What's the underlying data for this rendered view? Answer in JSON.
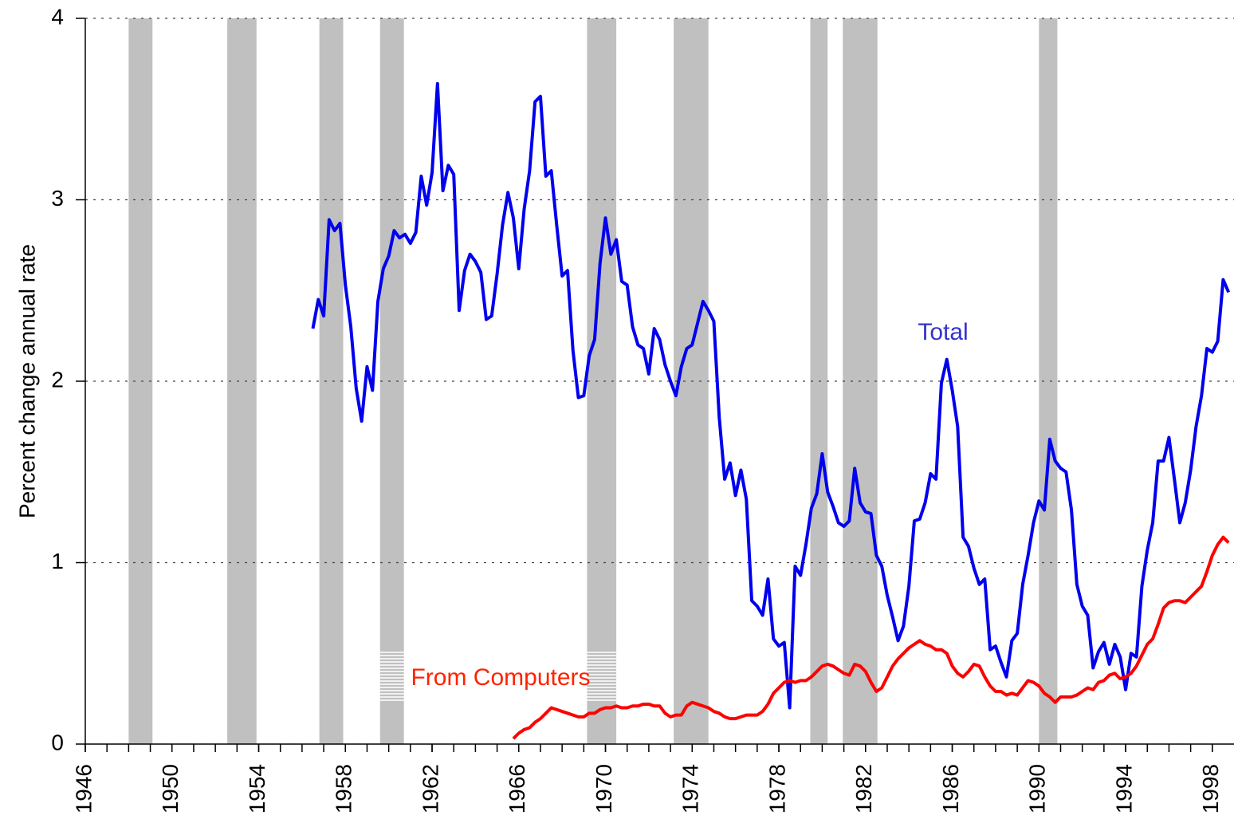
{
  "chart_data": {
    "type": "line",
    "ylabel": "Percent change annual rate",
    "xlim": [
      1946,
      1999
    ],
    "ylim": [
      0,
      4
    ],
    "xticks": [
      1946,
      1950,
      1954,
      1958,
      1962,
      1966,
      1970,
      1974,
      1978,
      1982,
      1986,
      1990,
      1994,
      1998
    ],
    "x_minor_ticks": [
      1946,
      1947,
      1948,
      1949,
      1950,
      1951,
      1952,
      1953,
      1954,
      1955,
      1956,
      1957,
      1958,
      1959,
      1960,
      1961,
      1962,
      1963,
      1964,
      1965,
      1966,
      1967,
      1968,
      1969,
      1970,
      1971,
      1972,
      1973,
      1974,
      1975,
      1976,
      1977,
      1978,
      1979,
      1980,
      1981,
      1982,
      1983,
      1984,
      1985,
      1986,
      1987,
      1988,
      1989,
      1990,
      1991,
      1992,
      1993,
      1994,
      1995,
      1996,
      1997,
      1998
    ],
    "yticks": [
      0,
      1,
      2,
      3,
      4
    ],
    "grid": true,
    "recession_color": "#c0c0c0",
    "recessions": [
      [
        1948.0,
        1949.1
      ],
      [
        1952.55,
        1953.9
      ],
      [
        1956.8,
        1957.9
      ],
      [
        1959.6,
        1960.7
      ],
      [
        1969.15,
        1970.5
      ],
      [
        1973.15,
        1974.75
      ],
      [
        1979.45,
        1980.25
      ],
      [
        1980.95,
        1982.55
      ],
      [
        1990.0,
        1990.85
      ]
    ],
    "annotations": [
      {
        "text": "Total",
        "color": "#3333cc"
      },
      {
        "text": "From Computers",
        "color": "#ff2200"
      }
    ],
    "series": [
      {
        "name": "Total",
        "color": "#0000ee",
        "x": [
          1956.5,
          1956.75,
          1957,
          1957.25,
          1957.5,
          1957.75,
          1958,
          1958.25,
          1958.5,
          1958.75,
          1959,
          1959.25,
          1959.5,
          1959.75,
          1960,
          1960.25,
          1960.5,
          1960.75,
          1961,
          1961.25,
          1961.5,
          1961.75,
          1962,
          1962.25,
          1962.5,
          1962.75,
          1963,
          1963.25,
          1963.5,
          1963.75,
          1964,
          1964.25,
          1964.5,
          1964.75,
          1965,
          1965.25,
          1965.5,
          1965.75,
          1966,
          1966.25,
          1966.5,
          1966.75,
          1967,
          1967.25,
          1967.5,
          1967.75,
          1968,
          1968.25,
          1968.5,
          1968.75,
          1969,
          1969.25,
          1969.5,
          1969.75,
          1970,
          1970.25,
          1970.5,
          1970.75,
          1971,
          1971.25,
          1971.5,
          1971.75,
          1972,
          1972.25,
          1972.5,
          1972.75,
          1973,
          1973.25,
          1973.5,
          1973.75,
          1974,
          1974.25,
          1974.5,
          1974.75,
          1975,
          1975.25,
          1975.5,
          1975.75,
          1976,
          1976.25,
          1976.5,
          1976.75,
          1977,
          1977.25,
          1977.5,
          1977.75,
          1978,
          1978.25,
          1978.5,
          1978.75,
          1979,
          1979.25,
          1979.5,
          1979.75,
          1980,
          1980.25,
          1980.5,
          1980.75,
          1981,
          1981.25,
          1981.5,
          1981.75,
          1982,
          1982.25,
          1982.5,
          1982.75,
          1983,
          1983.25,
          1983.5,
          1983.75,
          1984,
          1984.25,
          1984.5,
          1984.75,
          1985,
          1985.25,
          1985.5,
          1985.75,
          1986,
          1986.25,
          1986.5,
          1986.75,
          1987,
          1987.25,
          1987.5,
          1987.75,
          1988,
          1988.25,
          1988.5,
          1988.75,
          1989,
          1989.25,
          1989.5,
          1989.75,
          1990,
          1990.25,
          1990.5,
          1990.75,
          1991,
          1991.25,
          1991.5,
          1991.75,
          1992,
          1992.25,
          1992.5,
          1992.75,
          1993,
          1993.25,
          1993.5,
          1993.75,
          1994,
          1994.25,
          1994.5,
          1994.75,
          1995,
          1995.25,
          1995.5,
          1995.75,
          1996,
          1996.25,
          1996.5,
          1996.75,
          1997,
          1997.25,
          1997.5,
          1997.75,
          1998,
          1998.25,
          1998.5,
          1998.75
        ],
        "values": [
          2.29,
          2.45,
          2.36,
          2.89,
          2.83,
          2.87,
          2.53,
          2.3,
          1.96,
          1.78,
          2.08,
          1.95,
          2.44,
          2.62,
          2.69,
          2.83,
          2.79,
          2.81,
          2.76,
          2.82,
          3.13,
          2.97,
          3.15,
          3.64,
          3.05,
          3.19,
          3.14,
          2.39,
          2.61,
          2.7,
          2.66,
          2.6,
          2.34,
          2.36,
          2.59,
          2.86,
          3.04,
          2.9,
          2.62,
          2.95,
          3.16,
          3.54,
          3.57,
          3.13,
          3.16,
          2.86,
          2.58,
          2.61,
          2.17,
          1.91,
          1.92,
          2.14,
          2.23,
          2.65,
          2.9,
          2.7,
          2.78,
          2.55,
          2.53,
          2.3,
          2.2,
          2.18,
          2.04,
          2.29,
          2.23,
          2.09,
          2.0,
          1.92,
          2.08,
          2.18,
          2.2,
          2.32,
          2.44,
          2.39,
          2.33,
          1.8,
          1.46,
          1.55,
          1.37,
          1.51,
          1.35,
          0.79,
          0.76,
          0.71,
          0.91,
          0.58,
          0.54,
          0.56,
          0.2,
          0.98,
          0.93,
          1.1,
          1.3,
          1.38,
          1.6,
          1.39,
          1.31,
          1.22,
          1.2,
          1.23,
          1.52,
          1.33,
          1.28,
          1.27,
          1.04,
          0.98,
          0.82,
          0.7,
          0.57,
          0.65,
          0.87,
          1.23,
          1.24,
          1.33,
          1.49,
          1.46,
          1.99,
          2.12,
          1.95,
          1.75,
          1.14,
          1.09,
          0.97,
          0.88,
          0.91,
          0.52,
          0.54,
          0.45,
          0.37,
          0.57,
          0.61,
          0.88,
          1.04,
          1.22,
          1.34,
          1.29,
          1.68,
          1.56,
          1.52,
          1.5,
          1.29,
          0.88,
          0.76,
          0.71,
          0.42,
          0.51,
          0.56,
          0.44,
          0.55,
          0.48,
          0.3,
          0.5,
          0.48,
          0.87,
          1.07,
          1.22,
          1.56,
          1.56,
          1.69,
          1.46,
          1.22,
          1.33,
          1.51,
          1.75,
          1.92,
          2.18,
          2.16,
          2.22,
          2.56,
          2.49
        ]
      },
      {
        "name": "From Computers",
        "color": "#ff0000",
        "x": [
          1965.75,
          1966,
          1966.25,
          1966.5,
          1966.75,
          1967,
          1967.25,
          1967.5,
          1967.75,
          1968,
          1968.25,
          1968.5,
          1968.75,
          1969,
          1969.25,
          1969.5,
          1969.75,
          1970,
          1970.25,
          1970.5,
          1970.75,
          1971,
          1971.25,
          1971.5,
          1971.75,
          1972,
          1972.25,
          1972.5,
          1972.75,
          1973,
          1973.25,
          1973.5,
          1973.75,
          1974,
          1974.25,
          1974.5,
          1974.75,
          1975,
          1975.25,
          1975.5,
          1975.75,
          1976,
          1976.25,
          1976.5,
          1976.75,
          1977,
          1977.25,
          1977.5,
          1977.75,
          1978,
          1978.25,
          1978.5,
          1978.75,
          1979,
          1979.25,
          1979.5,
          1979.75,
          1980,
          1980.25,
          1980.5,
          1980.75,
          1981,
          1981.25,
          1981.5,
          1981.75,
          1982,
          1982.25,
          1982.5,
          1982.75,
          1983,
          1983.25,
          1983.5,
          1983.75,
          1984,
          1984.25,
          1984.5,
          1984.75,
          1985,
          1985.25,
          1985.5,
          1985.75,
          1986,
          1986.25,
          1986.5,
          1986.75,
          1987,
          1987.25,
          1987.5,
          1987.75,
          1988,
          1988.25,
          1988.5,
          1988.75,
          1989,
          1989.25,
          1989.5,
          1989.75,
          1990,
          1990.25,
          1990.5,
          1990.75,
          1991,
          1991.25,
          1991.5,
          1991.75,
          1992,
          1992.25,
          1992.5,
          1992.75,
          1993,
          1993.25,
          1993.5,
          1993.75,
          1994,
          1994.25,
          1994.5,
          1994.75,
          1995,
          1995.25,
          1995.5,
          1995.75,
          1996,
          1996.25,
          1996.5,
          1996.75,
          1997,
          1997.25,
          1997.5,
          1997.75,
          1998,
          1998.25,
          1998.5,
          1998.75
        ],
        "values": [
          0.03,
          0.06,
          0.08,
          0.09,
          0.12,
          0.14,
          0.17,
          0.2,
          0.19,
          0.18,
          0.17,
          0.16,
          0.15,
          0.15,
          0.17,
          0.17,
          0.19,
          0.2,
          0.2,
          0.21,
          0.2,
          0.2,
          0.21,
          0.21,
          0.22,
          0.22,
          0.21,
          0.21,
          0.17,
          0.15,
          0.16,
          0.16,
          0.21,
          0.23,
          0.22,
          0.21,
          0.2,
          0.18,
          0.17,
          0.15,
          0.14,
          0.14,
          0.15,
          0.16,
          0.16,
          0.16,
          0.18,
          0.22,
          0.28,
          0.31,
          0.34,
          0.35,
          0.34,
          0.35,
          0.35,
          0.37,
          0.4,
          0.43,
          0.44,
          0.43,
          0.41,
          0.39,
          0.38,
          0.44,
          0.43,
          0.4,
          0.34,
          0.29,
          0.31,
          0.37,
          0.43,
          0.47,
          0.5,
          0.53,
          0.55,
          0.57,
          0.55,
          0.54,
          0.52,
          0.52,
          0.5,
          0.43,
          0.39,
          0.37,
          0.4,
          0.44,
          0.43,
          0.37,
          0.32,
          0.29,
          0.29,
          0.27,
          0.28,
          0.27,
          0.31,
          0.35,
          0.34,
          0.32,
          0.28,
          0.26,
          0.23,
          0.26,
          0.26,
          0.26,
          0.27,
          0.29,
          0.31,
          0.3,
          0.34,
          0.35,
          0.38,
          0.39,
          0.36,
          0.37,
          0.39,
          0.43,
          0.49,
          0.55,
          0.58,
          0.66,
          0.75,
          0.78,
          0.79,
          0.79,
          0.78,
          0.81,
          0.84,
          0.87,
          0.95,
          1.04,
          1.1,
          1.14,
          1.11
        ]
      }
    ]
  }
}
